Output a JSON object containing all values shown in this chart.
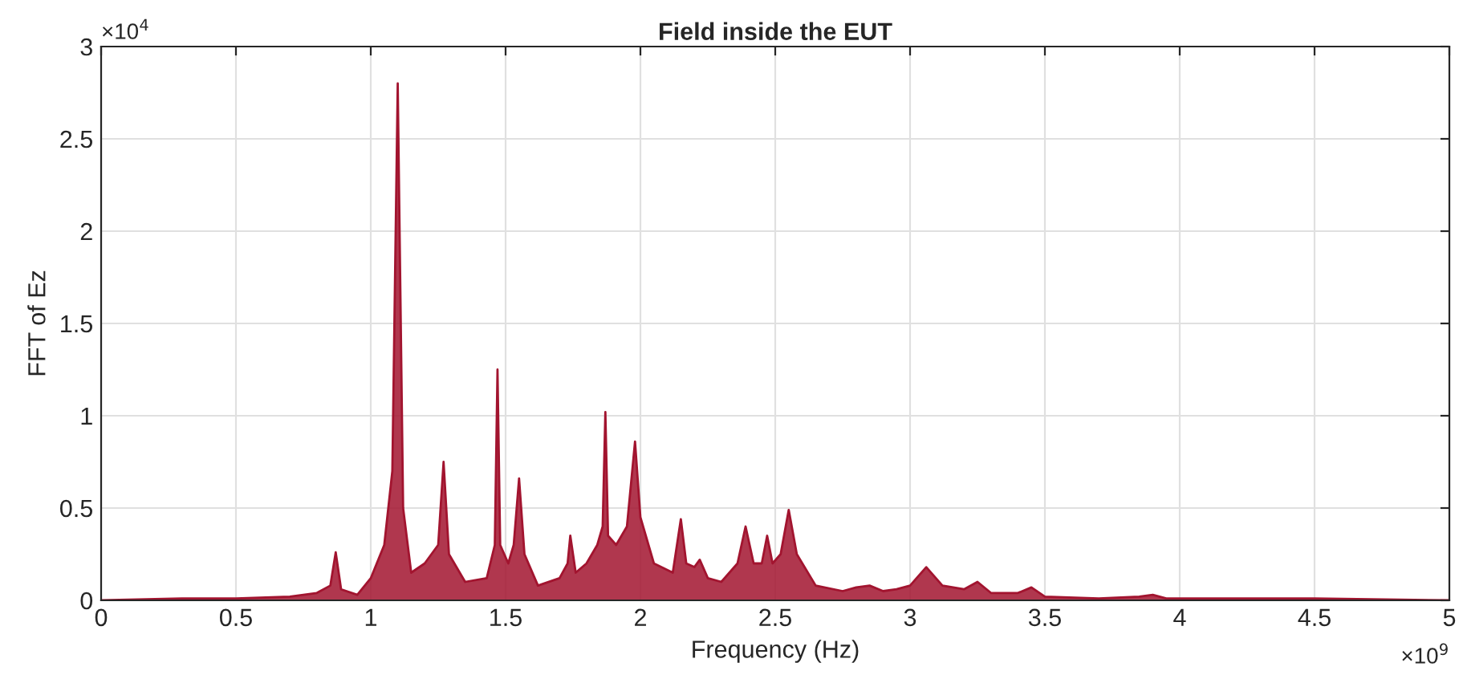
{
  "chart_data": {
    "type": "area",
    "title": "Field inside the EUT",
    "xlabel": "Frequency (Hz)",
    "ylabel": "FFT of Ez",
    "annotations": [
      "×10$^{4}$",
      "×10$^{9}$"
    ],
    "x": [
      0,
      0.3,
      0.5,
      0.7,
      0.8,
      0.85,
      0.87,
      0.89,
      0.95,
      1.0,
      1.05,
      1.08,
      1.1,
      1.12,
      1.15,
      1.2,
      1.25,
      1.27,
      1.29,
      1.35,
      1.43,
      1.46,
      1.47,
      1.48,
      1.51,
      1.53,
      1.55,
      1.57,
      1.62,
      1.7,
      1.73,
      1.74,
      1.76,
      1.8,
      1.84,
      1.86,
      1.87,
      1.88,
      1.91,
      1.95,
      1.98,
      2.0,
      2.05,
      2.12,
      2.15,
      2.17,
      2.2,
      2.22,
      2.25,
      2.3,
      2.36,
      2.39,
      2.42,
      2.45,
      2.47,
      2.49,
      2.52,
      2.55,
      2.58,
      2.65,
      2.75,
      2.8,
      2.85,
      2.9,
      2.95,
      3.0,
      3.06,
      3.12,
      3.2,
      3.25,
      3.3,
      3.4,
      3.45,
      3.5,
      3.7,
      3.85,
      3.9,
      3.95,
      4.1,
      4.5,
      5
    ],
    "series": [
      {
        "color": "#a2142f",
        "values": [
          0,
          0.01,
          0.01,
          0.02,
          0.04,
          0.08,
          0.26,
          0.06,
          0.03,
          0.12,
          0.3,
          0.7,
          2.8,
          0.5,
          0.15,
          0.2,
          0.3,
          0.75,
          0.25,
          0.1,
          0.12,
          0.3,
          1.25,
          0.3,
          0.2,
          0.3,
          0.66,
          0.25,
          0.08,
          0.12,
          0.2,
          0.35,
          0.15,
          0.2,
          0.3,
          0.4,
          1.02,
          0.35,
          0.3,
          0.4,
          0.86,
          0.45,
          0.2,
          0.15,
          0.44,
          0.2,
          0.18,
          0.22,
          0.12,
          0.1,
          0.2,
          0.4,
          0.2,
          0.2,
          0.35,
          0.2,
          0.25,
          0.49,
          0.25,
          0.08,
          0.05,
          0.07,
          0.08,
          0.05,
          0.06,
          0.08,
          0.18,
          0.08,
          0.06,
          0.1,
          0.04,
          0.04,
          0.07,
          0.02,
          0.01,
          0.02,
          0.03,
          0.01,
          0.01,
          0.01,
          0
        ]
      }
    ],
    "xlim": [
      0,
      5
    ],
    "xticks": [
      0,
      0.5,
      1,
      1.5,
      2,
      2.5,
      3,
      3.5,
      4,
      4.5,
      5
    ],
    "ylim": [
      0,
      3
    ],
    "yticks": [
      0,
      0.5,
      1,
      1.5,
      2,
      2.5,
      3
    ],
    "grid": true
  }
}
